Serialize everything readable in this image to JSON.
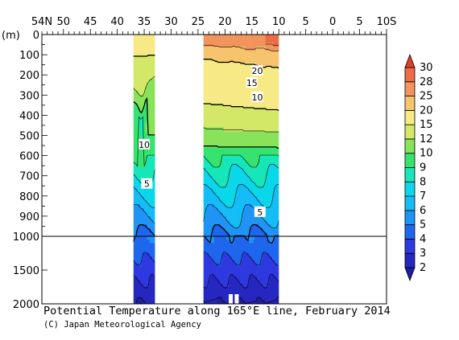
{
  "chart_data": {
    "type": "heatmap",
    "title": "Potential Temperature along 165°E line, February 2014",
    "credit": "(C) Japan Meteorological Agency",
    "ylabel_unit": "(m)",
    "x_ticks": [
      {
        "value": 54,
        "label": "54N"
      },
      {
        "value": 50,
        "label": "50"
      },
      {
        "value": 45,
        "label": "45"
      },
      {
        "value": 40,
        "label": "40"
      },
      {
        "value": 35,
        "label": "35"
      },
      {
        "value": 30,
        "label": "30"
      },
      {
        "value": 25,
        "label": "25"
      },
      {
        "value": 20,
        "label": "20"
      },
      {
        "value": 15,
        "label": "15"
      },
      {
        "value": 10,
        "label": "10"
      },
      {
        "value": 5,
        "label": "5"
      },
      {
        "value": 0,
        "label": "0"
      },
      {
        "value": -5,
        "label": "5"
      },
      {
        "value": -10,
        "label": "10S"
      }
    ],
    "y_ticks_upper": [
      100,
      200,
      300,
      400,
      500,
      600,
      700,
      800,
      900,
      1000
    ],
    "y_ticks_lower": [
      1500,
      2000
    ],
    "ylim": [
      0,
      2000
    ],
    "y_break": 1000,
    "xlim": [
      54,
      -10
    ],
    "colorbar": {
      "levels": [
        2,
        3,
        4,
        5,
        6,
        7,
        8,
        9,
        10,
        12,
        15,
        20,
        25,
        28,
        30
      ],
      "colors": [
        "#1f1f9e",
        "#2626c0",
        "#2f39e0",
        "#1e66ee",
        "#1f94f4",
        "#14bdf6",
        "#0ad8ea",
        "#16e6b8",
        "#37e36f",
        "#88e25a",
        "#d3e866",
        "#f7e985",
        "#f5c46c",
        "#f1955d",
        "#ee6b45",
        "#df3f2c"
      ]
    },
    "sections": [
      {
        "lat_start": 37,
        "lat_end": 33
      },
      {
        "lat_start": 24,
        "lat_end": 10
      }
    ],
    "contour_labels": [
      {
        "text": "20",
        "lat": 14,
        "depth": 180
      },
      {
        "text": "15",
        "lat": 15,
        "depth": 240
      },
      {
        "text": "10",
        "lat": 14,
        "depth": 310
      },
      {
        "text": "10",
        "lat": 35,
        "depth": 545
      },
      {
        "text": "5",
        "lat": 34.5,
        "depth": 740
      },
      {
        "text": "5",
        "lat": 13.5,
        "depth": 880
      }
    ]
  }
}
